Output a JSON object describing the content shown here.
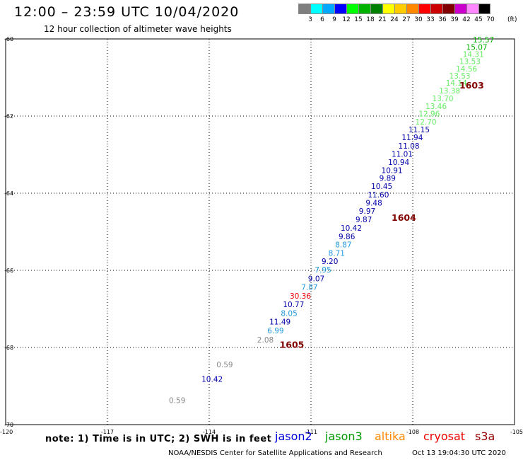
{
  "header": {
    "title": "12:00 – 23:59 UTC 10/04/2020",
    "subtitle": "12 hour collection of altimeter wave heights"
  },
  "colorbar": {
    "colors": [
      "#7f7f7f",
      "#00ffff",
      "#00a8ff",
      "#0000ff",
      "#00ff00",
      "#00b300",
      "#008000",
      "#ffff00",
      "#ffcc00",
      "#ff8800",
      "#ff0000",
      "#cc0000",
      "#800000",
      "#cc00cc",
      "#ff88ff",
      "#000000"
    ],
    "labels": [
      "3",
      "6",
      "9",
      "12",
      "15",
      "18",
      "21",
      "24",
      "27",
      "30",
      "33",
      "36",
      "39",
      "42",
      "45",
      "70"
    ],
    "unit": "(ft)"
  },
  "chart_data": {
    "type": "scatter",
    "title": "12:00 – 23:59 UTC 10/04/2020",
    "xlabel": "",
    "ylabel": "",
    "xlim": [
      -120,
      -105
    ],
    "ylim": [
      -70,
      -60
    ],
    "x_ticks": [
      "-120",
      "-117",
      "-114",
      "-111",
      "-108",
      "-105"
    ],
    "y_ticks": [
      "-60",
      "-62",
      "-64",
      "-66",
      "-68",
      "-70"
    ],
    "grid": true,
    "time_labels": [
      {
        "text": "1603",
        "lon": -105.9,
        "lat": -61.19,
        "color": "#800000"
      },
      {
        "text": "1604",
        "lon": -107.9,
        "lat": -64.62,
        "color": "#800000"
      },
      {
        "text": "1605",
        "lon": -111.2,
        "lat": -67.92,
        "color": "#800000"
      }
    ],
    "points": [
      {
        "label": "15.57",
        "lon": -105.6,
        "lat": -60.02,
        "color": "#00b300"
      },
      {
        "label": "15.07",
        "lon": -105.8,
        "lat": -60.21,
        "color": "#00b300"
      },
      {
        "label": "14.31",
        "lon": -105.9,
        "lat": -60.39,
        "color": "#66ee66"
      },
      {
        "label": "13.53",
        "lon": -106.0,
        "lat": -60.58,
        "color": "#66ee66"
      },
      {
        "label": "14.56",
        "lon": -106.1,
        "lat": -60.77,
        "color": "#66ee66"
      },
      {
        "label": "13.53",
        "lon": -106.3,
        "lat": -60.95,
        "color": "#66ee66"
      },
      {
        "label": "14.14",
        "lon": -106.4,
        "lat": -61.14,
        "color": "#66ee66"
      },
      {
        "label": "13.38",
        "lon": -106.6,
        "lat": -61.34,
        "color": "#66ee66"
      },
      {
        "label": "13.70",
        "lon": -106.8,
        "lat": -61.54,
        "color": "#66ee66"
      },
      {
        "label": "13.46",
        "lon": -107.0,
        "lat": -61.74,
        "color": "#66ee66"
      },
      {
        "label": "12.96",
        "lon": -107.2,
        "lat": -61.94,
        "color": "#66ee66"
      },
      {
        "label": "12.70",
        "lon": -107.3,
        "lat": -62.15,
        "color": "#66ee66"
      },
      {
        "label": "11.15",
        "lon": -107.5,
        "lat": -62.35,
        "color": "#0000aa"
      },
      {
        "label": "11.94",
        "lon": -107.7,
        "lat": -62.55,
        "color": "#0000aa"
      },
      {
        "label": "11.08",
        "lon": -107.8,
        "lat": -62.77,
        "color": "#0000aa"
      },
      {
        "label": "11.01",
        "lon": -108.0,
        "lat": -62.98,
        "color": "#0000aa"
      },
      {
        "label": "10.94",
        "lon": -108.1,
        "lat": -63.19,
        "color": "#0000aa"
      },
      {
        "label": "10.91",
        "lon": -108.3,
        "lat": -63.4,
        "color": "#0000aa"
      },
      {
        "label": "9.89",
        "lon": -108.5,
        "lat": -63.61,
        "color": "#0000aa"
      },
      {
        "label": "10.45",
        "lon": -108.6,
        "lat": -63.82,
        "color": "#0000aa"
      },
      {
        "label": "11.60",
        "lon": -108.7,
        "lat": -64.04,
        "color": "#0000aa"
      },
      {
        "label": "9.48",
        "lon": -108.9,
        "lat": -64.25,
        "color": "#0000aa"
      },
      {
        "label": "9.97",
        "lon": -109.1,
        "lat": -64.46,
        "color": "#0000aa"
      },
      {
        "label": "9.87",
        "lon": -109.2,
        "lat": -64.68,
        "color": "#0000aa"
      },
      {
        "label": "10.42",
        "lon": -109.5,
        "lat": -64.9,
        "color": "#0000aa"
      },
      {
        "label": "9.86",
        "lon": -109.7,
        "lat": -65.12,
        "color": "#0000aa"
      },
      {
        "label": "8.87",
        "lon": -109.8,
        "lat": -65.33,
        "color": "#2299dd"
      },
      {
        "label": "8.71",
        "lon": -110.0,
        "lat": -65.55,
        "color": "#2299dd"
      },
      {
        "label": "9.20",
        "lon": -110.2,
        "lat": -65.76,
        "color": "#0000aa"
      },
      {
        "label": "7.95",
        "lon": -110.4,
        "lat": -65.98,
        "color": "#2299dd"
      },
      {
        "label": "9.07",
        "lon": -110.6,
        "lat": -66.21,
        "color": "#0000aa"
      },
      {
        "label": "7.87",
        "lon": -110.8,
        "lat": -66.43,
        "color": "#2299dd"
      },
      {
        "label": "30.36",
        "lon": -111.0,
        "lat": -66.66,
        "color": "#ee0000"
      },
      {
        "label": "10.77",
        "lon": -111.2,
        "lat": -66.88,
        "color": "#0000aa"
      },
      {
        "label": "8.05",
        "lon": -111.4,
        "lat": -67.11,
        "color": "#2299dd"
      },
      {
        "label": "11.49",
        "lon": -111.6,
        "lat": -67.33,
        "color": "#0000aa"
      },
      {
        "label": "6.99",
        "lon": -111.8,
        "lat": -67.56,
        "color": "#2299dd"
      },
      {
        "label": "2.08",
        "lon": -112.1,
        "lat": -67.8,
        "color": "#888888"
      },
      {
        "label": "0.59",
        "lon": -113.3,
        "lat": -68.44,
        "color": "#888888"
      },
      {
        "label": "10.42",
        "lon": -113.6,
        "lat": -68.82,
        "color": "#0000aa"
      },
      {
        "label": "0.59",
        "lon": -114.7,
        "lat": -69.37,
        "color": "#888888"
      }
    ]
  },
  "footer": {
    "note": "note: 1) Time is in UTC; 2) SWH is in feet",
    "missions": [
      {
        "name": "jason2",
        "color": "#0000dd"
      },
      {
        "name": "jason3",
        "color": "#009900"
      },
      {
        "name": "altika",
        "color": "#ff8800"
      },
      {
        "name": "cryosat",
        "color": "#ee0000"
      },
      {
        "name": "s3a",
        "color": "#990000"
      }
    ],
    "credit": "NOAA/NESDIS Center for Satellite Applications and Research",
    "timestamp": "Oct 13 19:04:30 UTC 2020"
  }
}
